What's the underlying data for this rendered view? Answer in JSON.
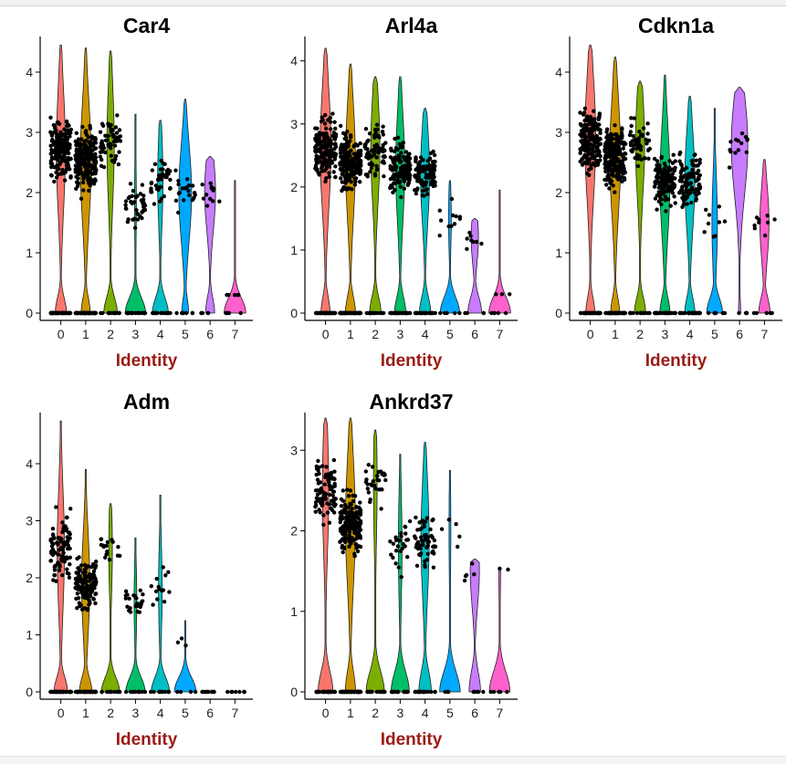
{
  "colors": {
    "identity_label": "#9b1b14",
    "clusters": [
      "#f8766d",
      "#cd9600",
      "#7cae00",
      "#00be67",
      "#00bfc4",
      "#00a9ff",
      "#c77cff",
      "#ff61cc"
    ]
  },
  "chart_data": [
    {
      "type": "violin",
      "title": "Car4",
      "xlabel": "Identity",
      "categories": [
        "0",
        "1",
        "2",
        "3",
        "4",
        "5",
        "6",
        "7"
      ],
      "y_ticks": [
        0,
        1,
        2,
        3,
        4
      ],
      "ylim": [
        0,
        4.5
      ],
      "max_values": [
        4.45,
        4.4,
        4.35,
        3.3,
        3.2,
        3.55,
        2.6,
        2.2
      ],
      "upper_centers": [
        2.7,
        2.5,
        2.8,
        1.8,
        2.2,
        2.0,
        2.0,
        0
      ],
      "zero_fraction": [
        0.5,
        0.4,
        0.6,
        0.9,
        0.7,
        0.3,
        0.4,
        0.95
      ],
      "points_per_group": [
        210,
        260,
        70,
        60,
        55,
        25,
        12,
        6
      ]
    },
    {
      "type": "violin",
      "title": "Arl4a",
      "xlabel": "Identity",
      "categories": [
        "0",
        "1",
        "2",
        "3",
        "4",
        "5",
        "6",
        "7"
      ],
      "y_ticks": [
        0,
        1,
        2,
        3,
        4
      ],
      "ylim": [
        0,
        4.3
      ],
      "max_values": [
        4.2,
        3.95,
        3.75,
        3.75,
        3.25,
        2.1,
        1.5,
        1.95
      ],
      "upper_centers": [
        2.6,
        2.4,
        2.6,
        2.3,
        2.2,
        1.5,
        1.2,
        0
      ],
      "zero_fraction": [
        0.4,
        0.45,
        0.5,
        0.5,
        0.5,
        0.85,
        0.6,
        0.95
      ],
      "points_per_group": [
        200,
        240,
        80,
        140,
        110,
        12,
        8,
        4
      ]
    },
    {
      "type": "violin",
      "title": "Cdkn1a",
      "xlabel": "Identity",
      "categories": [
        "0",
        "1",
        "2",
        "3",
        "4",
        "5",
        "6",
        "7"
      ],
      "y_ticks": [
        0,
        1,
        2,
        3,
        4
      ],
      "ylim": [
        0,
        4.5
      ],
      "max_values": [
        4.45,
        4.25,
        3.85,
        3.95,
        3.6,
        3.4,
        3.75,
        2.55
      ],
      "upper_centers": [
        2.9,
        2.6,
        2.8,
        2.2,
        2.2,
        1.5,
        2.8,
        1.5
      ],
      "zero_fraction": [
        0.4,
        0.4,
        0.5,
        0.45,
        0.45,
        0.7,
        0.1,
        0.5
      ],
      "points_per_group": [
        200,
        240,
        60,
        150,
        120,
        12,
        14,
        10
      ]
    },
    {
      "type": "violin",
      "title": "Adm",
      "xlabel": "Identity",
      "categories": [
        "0",
        "1",
        "2",
        "3",
        "4",
        "5",
        "6",
        "7"
      ],
      "y_ticks": [
        0,
        1,
        2,
        3,
        4
      ],
      "ylim": [
        0,
        4.8
      ],
      "max_values": [
        4.75,
        3.9,
        3.3,
        2.7,
        3.45,
        1.25,
        0,
        0
      ],
      "upper_centers": [
        2.5,
        1.9,
        2.5,
        1.6,
        1.8,
        1.0,
        0,
        0
      ],
      "zero_fraction": [
        0.6,
        0.55,
        0.8,
        0.85,
        0.8,
        0.95,
        1,
        1
      ],
      "points_per_group": [
        110,
        170,
        25,
        30,
        20,
        3,
        6,
        4
      ]
    },
    {
      "type": "violin",
      "title": "Ankrd37",
      "xlabel": "Identity",
      "categories": [
        "0",
        "1",
        "2",
        "3",
        "4",
        "5",
        "6",
        "7"
      ],
      "y_ticks": [
        0,
        1,
        2,
        3
      ],
      "ylim": [
        0,
        3.4
      ],
      "max_values": [
        3.4,
        3.4,
        3.25,
        2.95,
        3.1,
        2.75,
        1.65,
        1.55
      ],
      "upper_centers": [
        2.5,
        2.1,
        2.6,
        1.8,
        1.9,
        2.0,
        1.5,
        1.5
      ],
      "zero_fraction": [
        0.65,
        0.45,
        0.8,
        0.8,
        0.55,
        0.9,
        0.5,
        0.9
      ],
      "points_per_group": [
        110,
        200,
        40,
        40,
        70,
        5,
        6,
        3
      ]
    }
  ]
}
